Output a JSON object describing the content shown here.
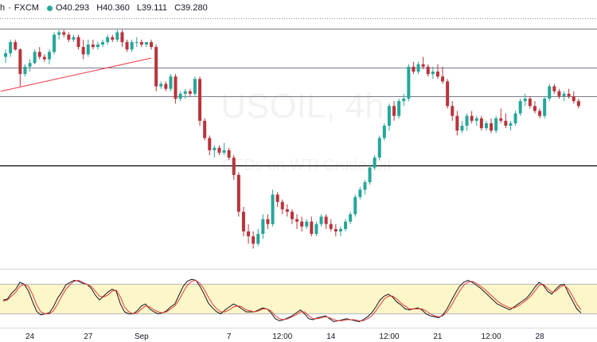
{
  "header": {
    "interval_suffix": "h",
    "separator": "·",
    "source": "FXCM",
    "ohlc": {
      "open": "O40.293",
      "high": "H40.360",
      "low": "L39.111",
      "close": "C39.280"
    },
    "status_color": "#26a69a"
  },
  "watermark": {
    "symbol": "USOIL, 4h",
    "description": "CFDs on WTI Crude Oil"
  },
  "colors": {
    "up": "#26a69a",
    "down": "#b8343b",
    "band_fill": "#fdf6c9",
    "stoch_k": "#131722",
    "stoch_d": "#e53935",
    "trendline": "#f23645"
  },
  "chart_data": [
    {
      "type": "candlestick",
      "title": "USOIL, 4h",
      "ohlc": [
        [
          40.6,
          40.9,
          40.35,
          40.75
        ],
        [
          40.75,
          41.3,
          40.6,
          41.2
        ],
        [
          41.2,
          41.3,
          40.85,
          40.9
        ],
        [
          40.9,
          40.95,
          39.4,
          39.9
        ],
        [
          39.9,
          40.3,
          39.8,
          40.2
        ],
        [
          40.2,
          40.5,
          40.0,
          40.35
        ],
        [
          40.35,
          40.9,
          40.3,
          40.8
        ],
        [
          40.8,
          41.0,
          40.5,
          40.6
        ],
        [
          40.6,
          40.7,
          40.4,
          40.5
        ],
        [
          40.5,
          40.9,
          40.3,
          40.8
        ],
        [
          40.8,
          41.6,
          40.7,
          41.5
        ],
        [
          41.5,
          41.7,
          41.3,
          41.6
        ],
        [
          41.6,
          41.7,
          41.4,
          41.5
        ],
        [
          41.5,
          41.6,
          41.2,
          41.3
        ],
        [
          41.3,
          41.5,
          41.2,
          41.4
        ],
        [
          41.4,
          41.5,
          40.9,
          41.0
        ],
        [
          41.0,
          41.3,
          40.5,
          40.7
        ],
        [
          40.7,
          41.3,
          40.6,
          41.1
        ],
        [
          41.1,
          41.3,
          40.9,
          41.0
        ],
        [
          41.0,
          41.2,
          40.9,
          41.1
        ],
        [
          41.1,
          41.3,
          41.0,
          41.2
        ],
        [
          41.2,
          41.5,
          41.1,
          41.4
        ],
        [
          41.4,
          41.5,
          41.2,
          41.3
        ],
        [
          41.3,
          41.7,
          41.2,
          41.6
        ],
        [
          41.6,
          41.7,
          41.0,
          41.2
        ],
        [
          41.2,
          41.3,
          40.8,
          40.9
        ],
        [
          40.9,
          41.3,
          40.8,
          41.2
        ],
        [
          41.2,
          41.4,
          41.0,
          41.2
        ],
        [
          41.2,
          41.3,
          41.0,
          41.1
        ],
        [
          41.1,
          41.2,
          41.0,
          41.2
        ],
        [
          41.2,
          41.3,
          40.9,
          41.0
        ],
        [
          41.0,
          41.1,
          39.2,
          39.4
        ],
        [
          39.4,
          39.6,
          39.3,
          39.5
        ],
        [
          39.5,
          39.6,
          39.2,
          39.3
        ],
        [
          39.3,
          39.9,
          39.2,
          39.8
        ],
        [
          39.8,
          39.9,
          38.7,
          38.9
        ],
        [
          38.9,
          39.2,
          38.8,
          39.1
        ],
        [
          39.1,
          39.3,
          38.9,
          39.2
        ],
        [
          39.2,
          39.3,
          39.0,
          39.1
        ],
        [
          39.1,
          39.8,
          39.0,
          39.7
        ],
        [
          39.7,
          39.8,
          37.8,
          38.0
        ],
        [
          38.0,
          38.1,
          37.2,
          37.3
        ],
        [
          37.3,
          37.4,
          36.6,
          36.8
        ],
        [
          36.8,
          37.0,
          36.5,
          36.9
        ],
        [
          36.9,
          37.0,
          36.6,
          36.7
        ],
        [
          36.7,
          37.1,
          36.6,
          36.8
        ],
        [
          36.8,
          36.9,
          36.4,
          36.5
        ],
        [
          36.5,
          36.6,
          35.6,
          35.8
        ],
        [
          35.8,
          35.9,
          34.1,
          34.3
        ],
        [
          34.3,
          34.5,
          33.3,
          33.5
        ],
        [
          33.5,
          33.8,
          33.0,
          33.3
        ],
        [
          33.3,
          33.5,
          32.8,
          33.0
        ],
        [
          33.0,
          33.6,
          32.9,
          33.4
        ],
        [
          33.4,
          34.2,
          33.2,
          34.0
        ],
        [
          34.0,
          34.2,
          33.6,
          33.8
        ],
        [
          33.8,
          35.2,
          33.7,
          35.0
        ],
        [
          35.0,
          35.1,
          34.5,
          34.7
        ],
        [
          34.7,
          34.8,
          34.2,
          34.4
        ],
        [
          34.4,
          34.6,
          34.1,
          34.3
        ],
        [
          34.3,
          34.4,
          33.8,
          34.0
        ],
        [
          34.0,
          34.2,
          33.6,
          33.9
        ],
        [
          33.9,
          34.1,
          33.5,
          33.7
        ],
        [
          33.7,
          34.0,
          33.6,
          33.9
        ],
        [
          33.9,
          34.1,
          33.3,
          33.4
        ],
        [
          33.4,
          33.9,
          33.3,
          33.8
        ],
        [
          33.8,
          34.2,
          33.7,
          34.1
        ],
        [
          34.1,
          34.2,
          33.6,
          33.8
        ],
        [
          33.8,
          34.0,
          33.5,
          33.6
        ],
        [
          33.6,
          33.8,
          33.3,
          33.5
        ],
        [
          33.5,
          33.7,
          33.3,
          33.6
        ],
        [
          33.6,
          34.0,
          33.5,
          33.9
        ],
        [
          33.9,
          34.3,
          33.8,
          34.2
        ],
        [
          34.2,
          35.0,
          34.1,
          34.9
        ],
        [
          34.9,
          35.3,
          34.8,
          35.2
        ],
        [
          35.2,
          35.6,
          35.0,
          35.5
        ],
        [
          35.5,
          36.2,
          35.4,
          36.1
        ],
        [
          36.1,
          36.6,
          36.0,
          36.5
        ],
        [
          36.5,
          37.4,
          36.4,
          37.3
        ],
        [
          37.3,
          37.9,
          37.2,
          37.8
        ],
        [
          37.8,
          38.7,
          37.6,
          38.6
        ],
        [
          38.6,
          38.8,
          38.0,
          38.2
        ],
        [
          38.2,
          38.9,
          38.1,
          38.8
        ],
        [
          38.8,
          39.1,
          38.6,
          38.9
        ],
        [
          38.9,
          40.3,
          38.8,
          40.2
        ],
        [
          40.2,
          40.4,
          39.9,
          40.0
        ],
        [
          40.0,
          40.4,
          39.9,
          40.3
        ],
        [
          40.3,
          40.6,
          40.1,
          40.2
        ],
        [
          40.2,
          40.3,
          39.8,
          39.9
        ],
        [
          39.9,
          40.2,
          39.7,
          40.0
        ],
        [
          40.0,
          40.3,
          39.7,
          39.8
        ],
        [
          39.8,
          40.2,
          39.5,
          39.6
        ],
        [
          39.6,
          39.7,
          38.5,
          38.6
        ],
        [
          38.6,
          38.8,
          38.0,
          38.2
        ],
        [
          38.2,
          38.4,
          37.4,
          37.6
        ],
        [
          37.6,
          38.0,
          37.5,
          37.8
        ],
        [
          37.8,
          38.3,
          37.6,
          38.2
        ],
        [
          38.2,
          38.4,
          37.9,
          38.0
        ],
        [
          38.0,
          38.2,
          37.8,
          38.1
        ],
        [
          38.1,
          38.2,
          37.6,
          37.7
        ],
        [
          37.7,
          38.0,
          37.6,
          37.9
        ],
        [
          37.9,
          38.1,
          37.5,
          37.6
        ],
        [
          37.6,
          38.2,
          37.5,
          38.1
        ],
        [
          38.1,
          38.5,
          37.9,
          38.0
        ],
        [
          38.0,
          38.3,
          37.7,
          37.8
        ],
        [
          37.8,
          38.0,
          37.6,
          37.9
        ],
        [
          37.9,
          38.4,
          37.8,
          38.3
        ],
        [
          38.3,
          38.9,
          38.2,
          38.8
        ],
        [
          38.8,
          39.1,
          38.6,
          38.9
        ],
        [
          38.9,
          39.0,
          38.5,
          38.6
        ],
        [
          38.6,
          38.8,
          38.3,
          38.4
        ],
        [
          38.4,
          38.5,
          38.1,
          38.2
        ],
        [
          38.2,
          39.0,
          38.1,
          38.9
        ],
        [
          38.9,
          39.5,
          38.8,
          39.4
        ],
        [
          39.4,
          39.5,
          39.1,
          39.2
        ],
        [
          39.2,
          39.3,
          38.9,
          39.0
        ],
        [
          39.0,
          39.2,
          38.8,
          39.1
        ],
        [
          39.1,
          39.3,
          38.9,
          39.0
        ],
        [
          39.0,
          39.2,
          38.7,
          38.8
        ],
        [
          38.8,
          38.9,
          38.5,
          38.6
        ]
      ],
      "x_ticks": [
        {
          "index": 5,
          "label": "24"
        },
        {
          "index": 17,
          "label": "27"
        },
        {
          "index": 28,
          "label": "Sep"
        },
        {
          "index": 46,
          "label": "7"
        },
        {
          "index": 57,
          "label": "12:00"
        },
        {
          "index": 67,
          "label": "14"
        },
        {
          "index": 79,
          "label": "12:00"
        },
        {
          "index": 89,
          "label": "21"
        },
        {
          "index": 100,
          "label": "12:00"
        },
        {
          "index": 110,
          "label": "28"
        }
      ],
      "horizontal_levels": [
        41.75,
        40.15,
        39.0,
        36.2
      ],
      "trendline": [
        {
          "index": -1,
          "price": 39.2
        },
        {
          "index": 30,
          "price": 40.55
        }
      ],
      "ylim": [
        32.4,
        42.2
      ]
    },
    {
      "type": "line",
      "title": "",
      "series": [
        {
          "values": [
            48,
            50,
            62,
            70,
            84,
            80,
            67,
            45,
            25,
            18,
            20,
            22,
            34,
            52,
            64,
            79,
            84,
            88,
            86,
            82,
            80,
            72,
            58,
            48,
            56,
            64,
            70,
            66,
            40,
            24,
            20,
            20,
            26,
            36,
            40,
            30,
            24,
            20,
            22,
            26,
            34,
            40,
            58,
            76,
            86,
            90,
            88,
            76,
            60,
            42,
            32,
            24,
            20,
            28,
            34,
            40,
            36,
            30,
            24,
            24,
            24,
            28,
            32,
            30,
            22,
            10,
            6,
            8,
            12,
            16,
            22,
            28,
            20,
            10,
            8,
            12,
            14,
            16,
            10,
            4,
            6,
            8,
            10,
            8,
            6,
            4,
            8,
            14,
            22,
            34,
            48,
            56,
            60,
            54,
            44,
            38,
            30,
            28,
            30,
            32,
            28,
            20,
            16,
            14,
            12,
            18,
            30,
            46,
            62,
            76,
            84,
            88,
            84,
            78,
            72,
            64,
            56,
            48,
            40,
            36,
            32,
            28,
            34,
            40,
            46,
            52,
            62,
            74,
            84,
            78,
            66,
            60,
            70,
            78,
            80,
            62,
            46,
            30,
            22
          ]
        },
        {
          "values": [
            46,
            48,
            56,
            64,
            76,
            80,
            76,
            60,
            38,
            24,
            20,
            20,
            26,
            40,
            56,
            70,
            80,
            86,
            88,
            84,
            80,
            76,
            66,
            56,
            54,
            58,
            66,
            68,
            54,
            34,
            24,
            20,
            22,
            30,
            36,
            34,
            28,
            24,
            22,
            24,
            30,
            36,
            48,
            64,
            78,
            86,
            88,
            82,
            70,
            54,
            40,
            30,
            24,
            24,
            28,
            34,
            36,
            34,
            28,
            26,
            24,
            26,
            30,
            30,
            26,
            16,
            10,
            8,
            10,
            14,
            18,
            24,
            24,
            16,
            10,
            10,
            12,
            14,
            12,
            8,
            6,
            6,
            8,
            8,
            8,
            6,
            6,
            10,
            16,
            26,
            38,
            50,
            56,
            56,
            50,
            42,
            36,
            30,
            30,
            30,
            30,
            26,
            20,
            16,
            14,
            16,
            24,
            36,
            52,
            66,
            78,
            84,
            86,
            82,
            76,
            70,
            62,
            54,
            46,
            40,
            36,
            32,
            32,
            36,
            42,
            48,
            56,
            66,
            78,
            80,
            72,
            64,
            66,
            74,
            78,
            70,
            56,
            40,
            28
          ]
        }
      ],
      "ylim": [
        0,
        100
      ],
      "bands": [
        20,
        80
      ]
    }
  ]
}
